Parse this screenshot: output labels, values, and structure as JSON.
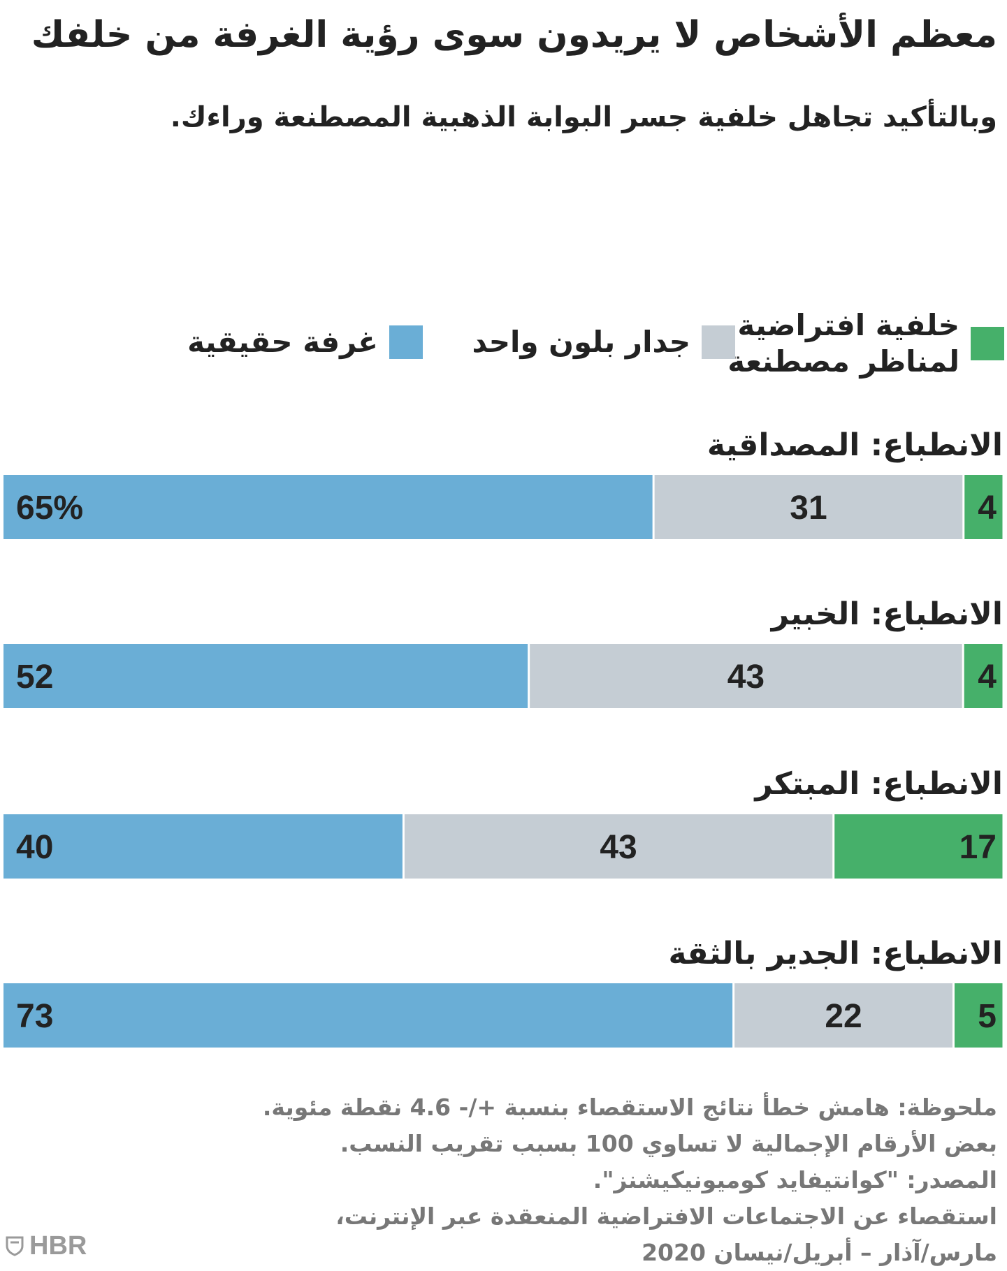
{
  "title": "معظم الأشخاص لا يريدون سوى رؤية الغرفة من خلفك",
  "subtitle": "وبالتأكيد تجاهل خلفية جسر البوابة الذهبية المصطنعة وراءك.",
  "legend": [
    {
      "label_line1": "خلفية افتراضية",
      "label_line2": "لمناظر مصطنعة",
      "color": "#46b06a"
    },
    {
      "label_line1": "جدار بلون واحد",
      "label_line2": "",
      "color": "#c5cdd4"
    },
    {
      "label_line1": "غرفة حقيقية",
      "label_line2": "",
      "color": "#6aaed6"
    }
  ],
  "chart_data": {
    "type": "bar",
    "orientation": "horizontal-stacked-100",
    "title": "معظم الأشخاص لا يريدون سوى رؤية الغرفة من خلفك",
    "subtitle": "وبالتأكيد تجاهل خلفية جسر البوابة الذهبية المصطنعة وراءك.",
    "unit": "%",
    "categories": [
      "الانطباع: المصداقية",
      "الانطباع: الخبير",
      "الانطباع: المبتكر",
      "الانطباع: الجدير بالثقة"
    ],
    "series": [
      {
        "name": "خلفية افتراضية لمناظر مصطنعة",
        "color": "#46b06a",
        "values": [
          4,
          4,
          17,
          5
        ],
        "labels": [
          "4",
          "4",
          "17",
          "5"
        ]
      },
      {
        "name": "جدار بلون واحد",
        "color": "#c5cdd4",
        "values": [
          31,
          43,
          43,
          22
        ],
        "labels": [
          "31",
          "43",
          "43",
          "22"
        ]
      },
      {
        "name": "غرفة حقيقية",
        "color": "#6aaed6",
        "values": [
          65,
          52,
          40,
          73
        ],
        "labels": [
          "65%",
          "52",
          "40",
          "73"
        ]
      }
    ]
  },
  "footer": {
    "note_line1": "ملحوظة: هامش خطأ نتائج الاستقصاء بنسبة +/- 4.6 نقطة مئوية.",
    "note_line2": "بعض الأرقام الإجمالية لا تساوي 100 بسبب تقريب النسب.",
    "source_line1": "المصدر: \"كوانتيفايد كوميونيكيشنز\".",
    "source_line2": "استقصاء عن الاجتماعات الافتراضية المنعقدة عبر الإنترنت،",
    "source_line3": "مارس/آذار – أبريل/نيسان 2020"
  },
  "logo": {
    "text": "HBR",
    "icon": "hbr-shield-icon"
  }
}
